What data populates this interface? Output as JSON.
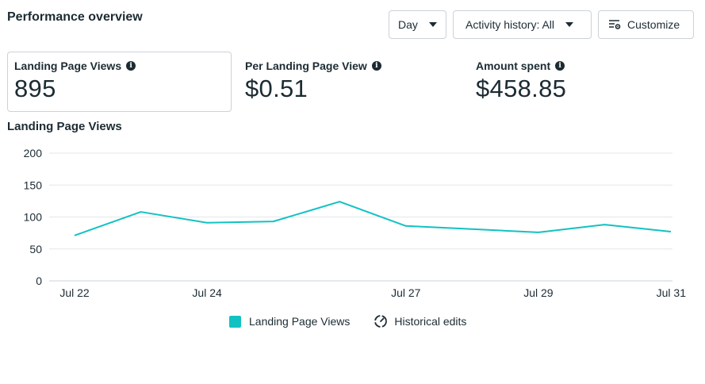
{
  "header": {
    "title": "Performance overview",
    "day_label": "Day",
    "activity_label": "Activity history: All",
    "customize_label": "Customize"
  },
  "metrics": [
    {
      "label": "Landing Page Views",
      "value": "895"
    },
    {
      "label": "Per Landing Page View",
      "value": "$0.51"
    },
    {
      "label": "Amount spent",
      "value": "$458.85"
    }
  ],
  "chart_title": "Landing Page Views",
  "legend": {
    "series_label": "Landing Page Views",
    "historical_label": "Historical edits"
  },
  "colors": {
    "series": "#12c2c2",
    "grid": "#e4e6eb",
    "text": "#1c2b33"
  },
  "icons": {
    "info": "info-icon",
    "customize": "sliders-gear-icon",
    "historical": "dashed-circle-gauge-icon",
    "dropdown": "caret-down-icon"
  },
  "chart_data": {
    "type": "line",
    "title": "Landing Page Views",
    "x": [
      "Jul 22",
      "Jul 23",
      "Jul 24",
      "Jul 25",
      "Jul 26",
      "Jul 27",
      "Jul 28",
      "Jul 29",
      "Jul 30",
      "Jul 31"
    ],
    "x_tick_labels": [
      "Jul 22",
      "Jul 24",
      "Jul 27",
      "Jul 29",
      "Jul 31"
    ],
    "series": [
      {
        "name": "Landing Page Views",
        "values": [
          71,
          108,
          91,
          93,
          124,
          86,
          81,
          76,
          88,
          77
        ]
      }
    ],
    "yticks": [
      0,
      50,
      100,
      150,
      200
    ],
    "ylim": [
      0,
      200
    ],
    "grid": true,
    "legend_position": "bottom-center"
  }
}
